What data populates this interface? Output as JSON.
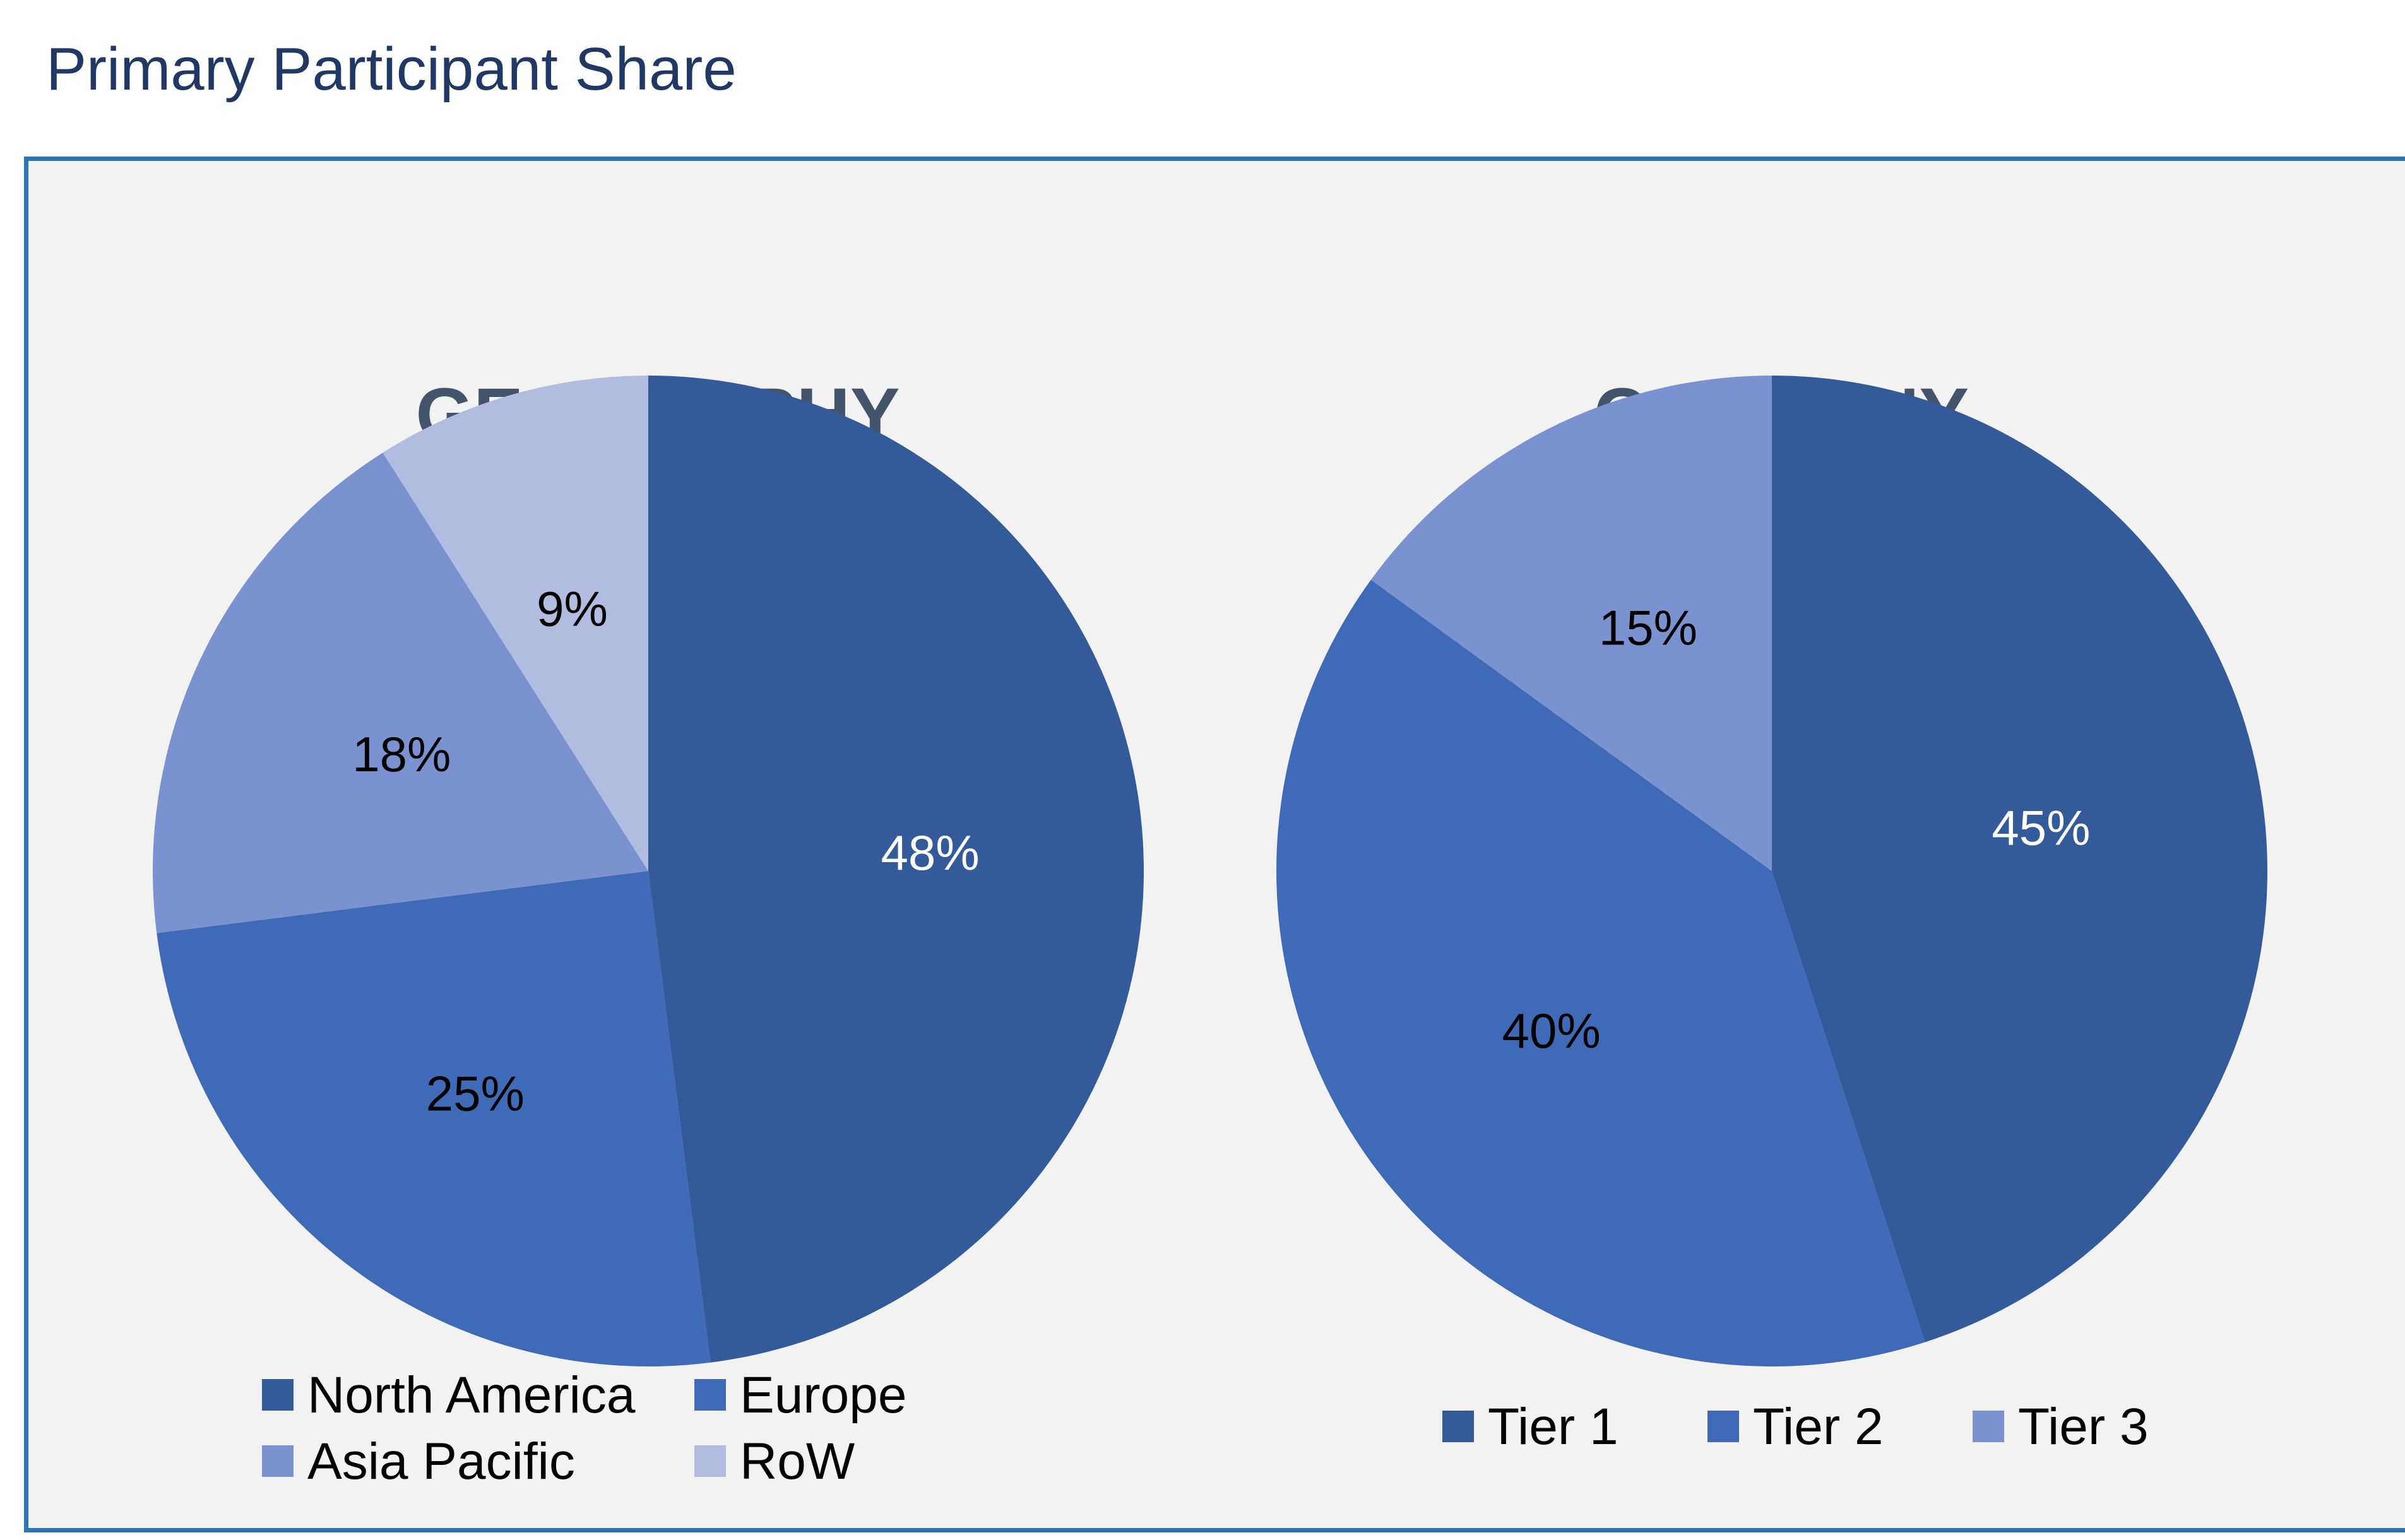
{
  "page": {
    "title": "Primary Participant Share"
  },
  "colors": {
    "frame_border": "#2e75b6",
    "frame_background": "#f2f2f2",
    "series": [
      "#335a99",
      "#3f6ab8",
      "#7a92cf",
      "#b1bce0"
    ],
    "text_dark": "#000000",
    "text_light": "#ffffff"
  },
  "chart_data": [
    {
      "type": "pie",
      "title": "GEOGRAPHY",
      "categories": [
        "North America",
        "Europe",
        "Asia Pacific",
        "RoW"
      ],
      "values": [
        48,
        25,
        18,
        9
      ],
      "labels": [
        "48%",
        "25%",
        "18%",
        "9%"
      ],
      "label_colors": [
        "#ffffff",
        "#000000",
        "#000000",
        "#000000"
      ],
      "start": "12 o'clock",
      "direction": "clockwise",
      "legend": "bottom"
    },
    {
      "type": "pie",
      "title": "COMPANY",
      "categories": [
        "Tier 1",
        "Tier 2",
        "Tier 3"
      ],
      "values": [
        45,
        40,
        15
      ],
      "labels": [
        "45%",
        "40%",
        "15%"
      ],
      "label_colors": [
        "#ffffff",
        "#000000",
        "#000000"
      ],
      "start": "12 o'clock",
      "direction": "clockwise",
      "legend": "bottom"
    }
  ]
}
